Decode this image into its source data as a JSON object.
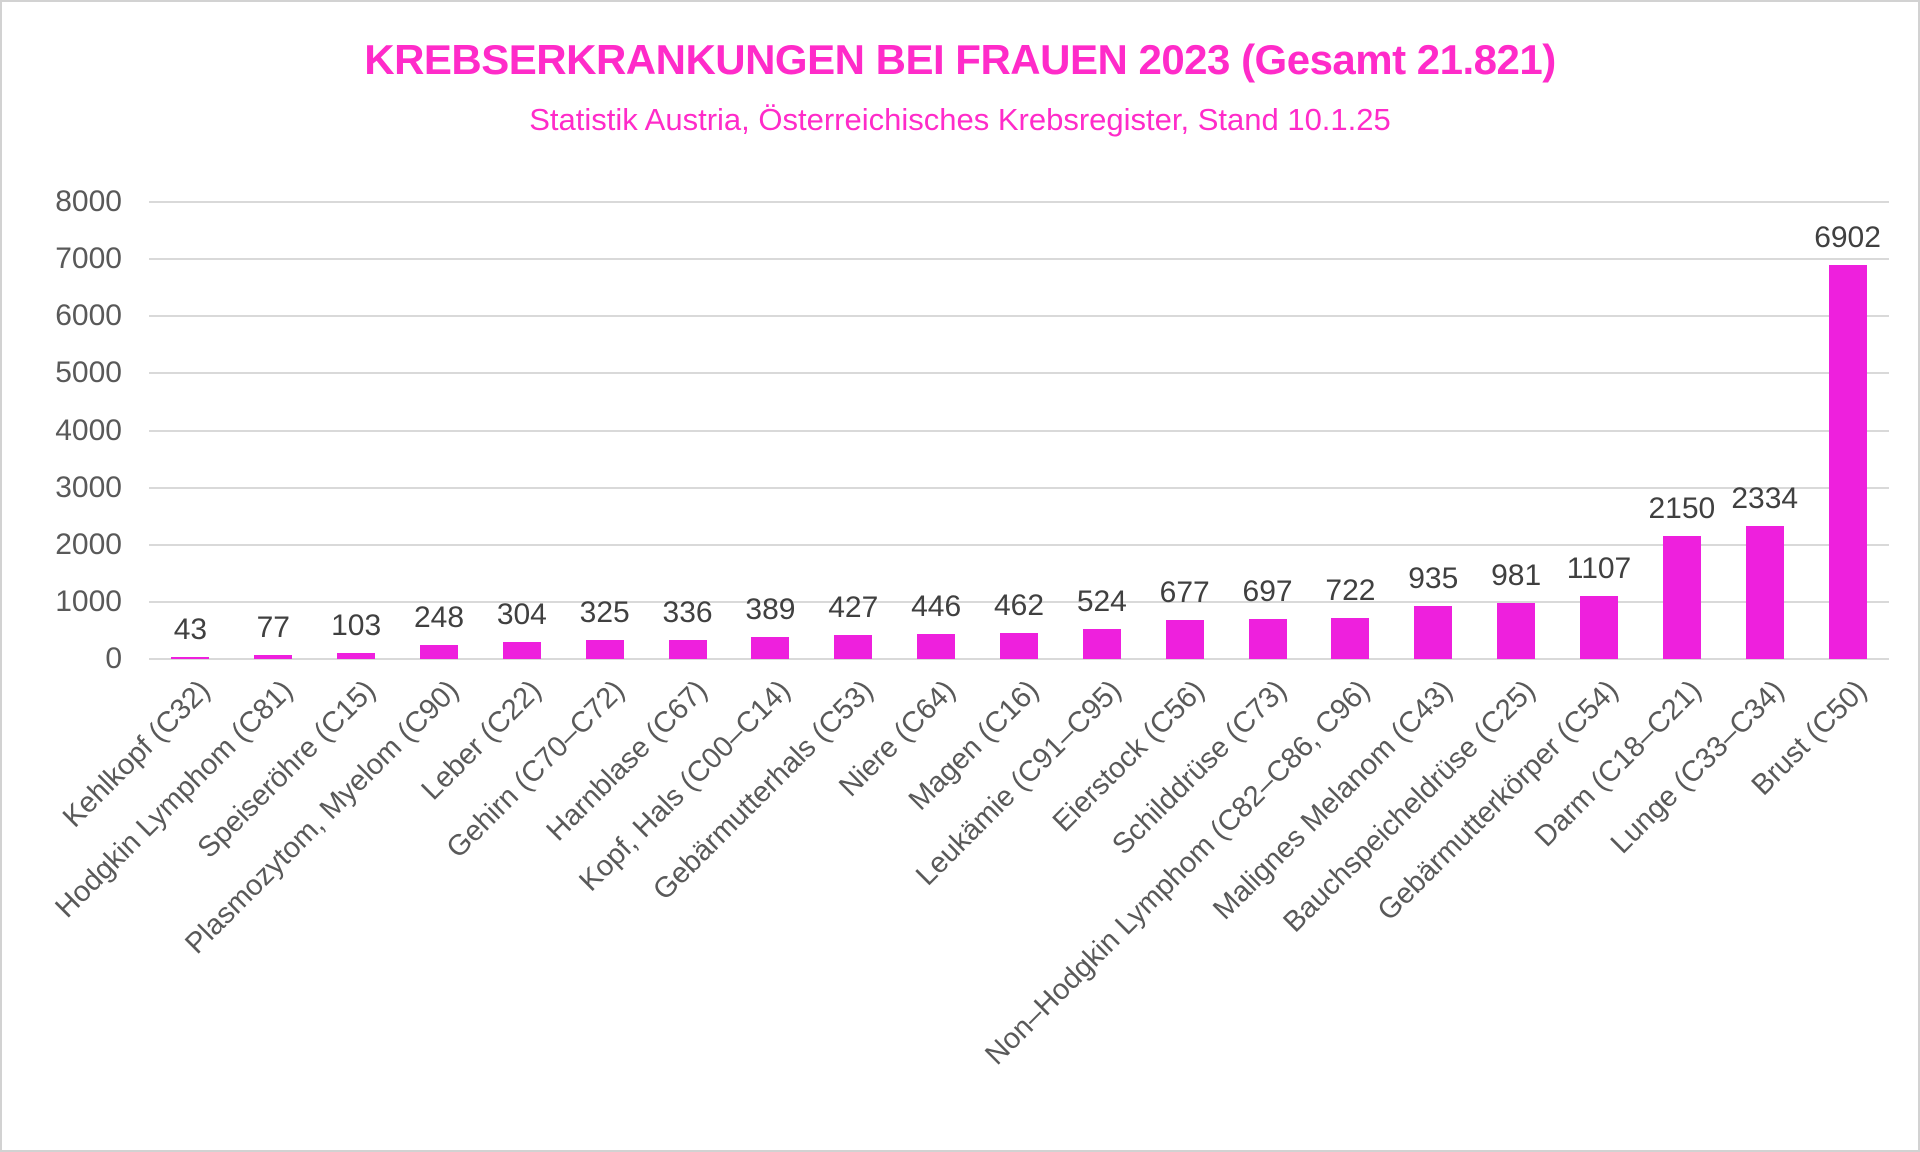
{
  "header": {
    "title": "KREBSERKRANKUNGEN BEI FRAUEN 2023 (Gesamt 21.821)",
    "subtitle": "Statistik Austria, Österreichisches Krebsregister, Stand 10.1.25"
  },
  "colors": {
    "title_pink": "#ff2bc9",
    "bar_magenta": "#ee20dd",
    "gridline_gray": "#d9d9d9",
    "axis_tick_gray": "#595959",
    "value_label_gray": "#404040",
    "category_label_gray": "#595959"
  },
  "chart_data": {
    "type": "bar",
    "title": "KREBSERKRANKUNGEN BEI FRAUEN 2023 (Gesamt 21.821)",
    "subtitle": "Statistik Austria, Österreichisches Krebsregister, Stand 10.1.25",
    "categories": [
      "Kehlkopf (C32)",
      "Hodgkin Lymphom (C81)",
      "Speiseröhre (C15)",
      "Plasmozytom, Myelom (C90)",
      "Leber (C22)",
      "Gehirn (C70–C72)",
      "Harnblase (C67)",
      "Kopf, Hals (C00–C14)",
      "Gebärmutterhals (C53)",
      "Niere (C64)",
      "Magen (C16)",
      "Leukämie (C91–C95)",
      "Eierstock (C56)",
      "Schilddrüse (C73)",
      "Non–Hodgkin Lymphom (C82–C86, C96)",
      "Malignes Melanom (C43)",
      "Bauchspeicheldrüse (C25)",
      "Gebärmutterkörper (C54)",
      "Darm (C18–C21)",
      "Lunge (C33–C34)",
      "Brust (C50)"
    ],
    "values": [
      43,
      77,
      103,
      248,
      304,
      325,
      336,
      389,
      427,
      446,
      462,
      524,
      677,
      697,
      722,
      935,
      981,
      1107,
      2150,
      2334,
      6902
    ],
    "value_labels": [
      "43",
      "77",
      "103",
      "248",
      "304",
      "325",
      "336",
      "389",
      "427",
      "446",
      "462",
      "524",
      "677",
      "697",
      "722",
      "935",
      "981",
      "1107",
      "2150",
      "2334",
      "6902"
    ],
    "xlabel": "",
    "ylabel": "",
    "ylim": [
      0,
      8000
    ],
    "yticks": [
      0,
      1000,
      2000,
      3000,
      4000,
      5000,
      6000,
      7000,
      8000
    ],
    "grid": true,
    "legend": "none",
    "bar_color_name": "magenta"
  }
}
